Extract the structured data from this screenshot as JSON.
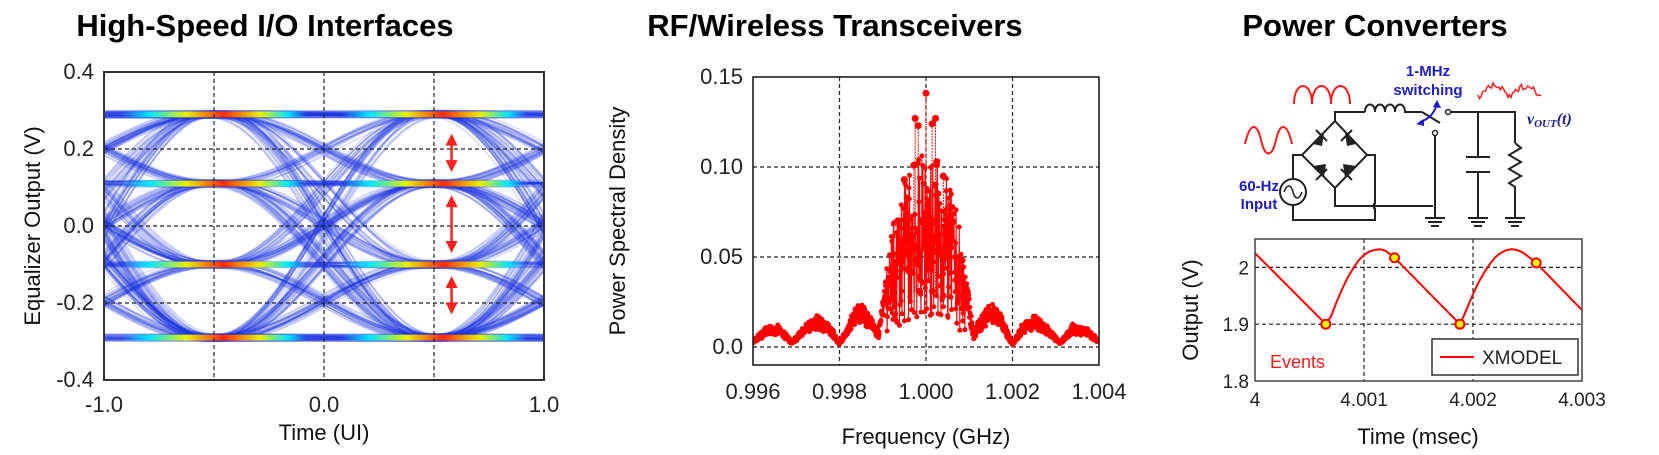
{
  "titles": {
    "io": "High-Speed I/O Interfaces",
    "rf": "RF/Wireless Transceivers",
    "power": "Power Converters"
  },
  "circuit": {
    "switch_label_1": "1-MHz",
    "switch_label_2": "switching",
    "input_label_1": "60-Hz",
    "input_label_2": "Input",
    "vout_label": "v",
    "vout_sub": "OUT",
    "vout_arg": "(t)"
  },
  "colors": {
    "trace_red": "#ff0000",
    "eye_blue": "#1a2fe0",
    "circuit_blue": "#1b1bc8",
    "marker_yellow": "#ffff00"
  },
  "chart_data": [
    {
      "id": "eye",
      "type": "heatmap",
      "title": "High-Speed I/O Interfaces",
      "xlabel": "Time (UI)",
      "ylabel": "Equalizer Output (V)",
      "xlim": [
        -1.0,
        1.0
      ],
      "ylim": [
        -0.4,
        0.4
      ],
      "xticks": [
        "-1.0",
        "0.0",
        "1.0"
      ],
      "xtick_values": [
        -1.0,
        0.0,
        1.0
      ],
      "xgrid": [
        -0.5,
        0.0,
        0.5
      ],
      "yticks": [
        "0.4",
        "0.2",
        "0.0",
        "-0.2",
        "-0.4"
      ],
      "ytick_values": [
        0.4,
        0.2,
        0.0,
        -0.2,
        -0.4
      ],
      "ygrid": [
        0.2,
        0.0,
        -0.2
      ],
      "pam4_levels": [
        -0.29,
        -0.1,
        0.11,
        0.29
      ],
      "eye_openings": [
        [
          0.24,
          0.14
        ],
        [
          0.08,
          -0.07
        ],
        [
          -0.13,
          -0.23
        ]
      ],
      "arrow_time": 0.58
    },
    {
      "id": "psd",
      "type": "line",
      "title": "RF/Wireless Transceivers",
      "xlabel": "Frequency (GHz)",
      "ylabel": "Power Spectral Density",
      "xlim": [
        0.996,
        1.004
      ],
      "ylim": [
        -0.01,
        0.15
      ],
      "xticks": [
        "0.996",
        "0.998",
        "1.000",
        "1.002",
        "1.004"
      ],
      "xtick_values": [
        0.996,
        0.998,
        1.0,
        1.002,
        1.004
      ],
      "yticks": [
        "0.15",
        "0.10",
        "0.05",
        "0.0"
      ],
      "ytick_values": [
        0.15,
        0.1,
        0.05,
        0.0
      ],
      "envelope": [
        [
          0.996,
          0.004
        ],
        [
          0.9963,
          0.011
        ],
        [
          0.9966,
          0.013
        ],
        [
          0.9969,
          0.003
        ],
        [
          0.9972,
          0.012
        ],
        [
          0.9975,
          0.018
        ],
        [
          0.9978,
          0.012
        ],
        [
          0.998,
          0.002
        ],
        [
          0.9983,
          0.02
        ],
        [
          0.9985,
          0.025
        ],
        [
          0.9988,
          0.014
        ],
        [
          0.9989,
          0.008
        ],
        [
          0.9991,
          0.045
        ],
        [
          0.9993,
          0.07
        ],
        [
          0.9996,
          0.09
        ],
        [
          1.0,
          0.1
        ],
        [
          1.0004,
          0.09
        ],
        [
          1.0007,
          0.07
        ],
        [
          1.0009,
          0.045
        ],
        [
          1.0011,
          0.008
        ],
        [
          1.0012,
          0.014
        ],
        [
          1.0015,
          0.025
        ],
        [
          1.0017,
          0.02
        ],
        [
          1.002,
          0.002
        ],
        [
          1.0022,
          0.012
        ],
        [
          1.0025,
          0.018
        ],
        [
          1.0028,
          0.012
        ],
        [
          1.0031,
          0.003
        ],
        [
          1.0034,
          0.013
        ],
        [
          1.0037,
          0.011
        ],
        [
          1.004,
          0.004
        ]
      ],
      "peaks": [
        [
          1.0,
          0.141
        ],
        [
          0.99975,
          0.127
        ],
        [
          1.00022,
          0.127
        ],
        [
          0.99982,
          0.123
        ],
        [
          1.00014,
          0.124
        ],
        [
          0.9995,
          0.093
        ],
        [
          1.0004,
          0.095
        ],
        [
          1.00025,
          0.103
        ],
        [
          0.99972,
          0.101
        ],
        [
          0.99985,
          0.031
        ],
        [
          1.00015,
          0.031
        ]
      ]
    },
    {
      "id": "output",
      "type": "line",
      "title": "Power Converters",
      "xlabel": "Time (msec)",
      "ylabel": "Output (V)",
      "xlim": [
        4.0,
        4.003
      ],
      "ylim": [
        1.8,
        2.05
      ],
      "xticks": [
        "4",
        "4.001",
        "4.002",
        "4.003"
      ],
      "xtick_values": [
        4.0,
        4.001,
        4.002,
        4.003
      ],
      "yticks": [
        "2",
        "1.9",
        "1.8"
      ],
      "ytick_values": [
        2.0,
        1.9,
        1.8
      ],
      "legend": {
        "entries": [
          "XMODEL"
        ],
        "position": "bottom-right"
      },
      "annotation": "Events",
      "series": [
        {
          "name": "XMODEL",
          "x": [
            4.0,
            4.00065,
            4.0007,
            4.00075,
            4.0008,
            4.00085,
            4.0009,
            4.00095,
            4.001,
            4.00105,
            4.0011,
            4.00115,
            4.0012,
            4.00128,
            4.00188,
            4.0019,
            4.00195,
            4.002,
            4.00205,
            4.0021,
            4.00215,
            4.0022,
            4.00225,
            4.0023,
            4.00235,
            4.0024,
            4.00245,
            4.0025,
            4.00258,
            4.003
          ],
          "y": [
            2.025,
            1.9,
            1.915,
            1.94,
            1.962,
            1.982,
            1.998,
            2.012,
            2.022,
            2.028,
            2.031,
            2.032,
            2.029,
            2.017,
            1.9,
            1.908,
            1.93,
            1.953,
            1.973,
            1.99,
            2.005,
            2.017,
            2.025,
            2.03,
            2.032,
            2.031,
            2.027,
            2.02,
            2.008,
            1.925
          ]
        }
      ],
      "events": [
        [
          4.00065,
          1.9
        ],
        [
          4.00128,
          2.017
        ],
        [
          4.00188,
          1.9
        ],
        [
          4.00258,
          2.008
        ]
      ]
    }
  ]
}
